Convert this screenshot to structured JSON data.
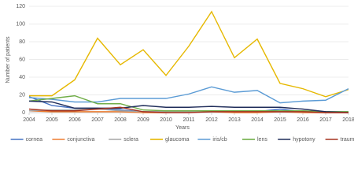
{
  "chart_data": {
    "type": "line",
    "x_label": "Years",
    "y_label": "Number of patients",
    "x": [
      2004,
      2005,
      2006,
      2007,
      2008,
      2009,
      2010,
      2011,
      2012,
      2013,
      2014,
      2015,
      2016,
      2017,
      2018
    ],
    "xlim": [
      2004,
      2018
    ],
    "xticks": [
      2004,
      2005,
      2006,
      2007,
      2008,
      2009,
      2010,
      2011,
      2012,
      2013,
      2014,
      2015,
      2016,
      2017,
      2018
    ],
    "ylim": [
      0,
      120
    ],
    "yticks": [
      0,
      20,
      40,
      60,
      80,
      100,
      120
    ],
    "grid": true,
    "legend": "bottom",
    "series": [
      {
        "name": "cornea",
        "color": "#4472c4",
        "values": [
          18,
          8,
          5,
          5,
          3,
          1,
          1,
          2,
          2,
          1,
          1,
          4,
          1,
          1,
          1
        ]
      },
      {
        "name": "conjunctiva",
        "color": "#ed7d31",
        "values": [
          2,
          1,
          1,
          1,
          1,
          0,
          0,
          1,
          1,
          0,
          0,
          1,
          0,
          0,
          0
        ]
      },
      {
        "name": "sclera",
        "color": "#a5a5a5",
        "values": [
          2,
          3,
          3,
          4,
          2,
          1,
          1,
          1,
          1,
          2,
          2,
          1,
          1,
          1,
          0
        ]
      },
      {
        "name": "glaucoma",
        "color": "#e6b800",
        "values": [
          19,
          19,
          37,
          84,
          54,
          71,
          42,
          75,
          114,
          62,
          83,
          33,
          27,
          18,
          26
        ]
      },
      {
        "name": "iris/cb",
        "color": "#5b9bd5",
        "values": [
          17,
          15,
          12,
          12,
          16,
          16,
          16,
          21,
          29,
          23,
          25,
          11,
          13,
          14,
          27
        ]
      },
      {
        "name": "lens",
        "color": "#70ad47",
        "values": [
          13,
          16,
          19,
          10,
          10,
          3,
          2,
          2,
          2,
          2,
          2,
          2,
          2,
          1,
          1
        ]
      },
      {
        "name": "hypotony",
        "color": "#1f2d5a",
        "values": [
          13,
          12,
          5,
          5,
          5,
          8,
          6,
          6,
          7,
          6,
          6,
          6,
          4,
          1,
          0
        ]
      },
      {
        "name": "trauma",
        "color": "#a5331f",
        "values": [
          4,
          2,
          2,
          4,
          6,
          1,
          0,
          0,
          1,
          1,
          1,
          1,
          1,
          0,
          0
        ]
      }
    ]
  }
}
